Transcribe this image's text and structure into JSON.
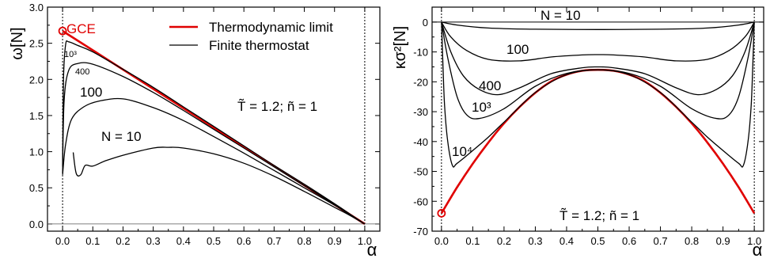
{
  "chart_data": [
    {
      "type": "line",
      "xlabel": "α",
      "ylabel": "ω[N]",
      "xlim": [
        -0.05,
        1.05
      ],
      "ylim": [
        -0.1,
        3.0
      ],
      "x_ticks": [
        "0.0",
        "0.1",
        "0.2",
        "0.3",
        "0.4",
        "0.5",
        "0.6",
        "0.7",
        "0.8",
        "0.9",
        "1.0"
      ],
      "y_ticks": [
        "0.0",
        "0.5",
        "1.0",
        "1.5",
        "2.0",
        "2.5",
        "3.0"
      ],
      "legend": {
        "placement": "top-right",
        "items": [
          "Thermodynamic limit",
          "Finite thermostat"
        ]
      },
      "annotations": {
        "gce": "GCE",
        "params": "T̃ = 1.2;  ñ = 1",
        "curve_labels": [
          "10³",
          "400",
          "100",
          "N = 10"
        ]
      },
      "vertical_lines": [
        0,
        1
      ],
      "series": [
        {
          "name": "Thermodynamic limit",
          "color": "#e00000",
          "points": [
            [
              0.0,
              2.67
            ],
            [
              1.0,
              0.0
            ]
          ]
        },
        {
          "label": "10³",
          "points": [
            [
              0.0,
              0.8
            ],
            [
              0.003,
              2.0
            ],
            [
              0.01,
              2.48
            ],
            [
              0.02,
              2.52
            ],
            [
              0.05,
              2.47
            ],
            [
              0.1,
              2.38
            ],
            [
              0.2,
              2.14
            ],
            [
              0.3,
              1.89
            ],
            [
              0.4,
              1.62
            ],
            [
              0.5,
              1.35
            ],
            [
              0.6,
              1.08
            ],
            [
              0.7,
              0.81
            ],
            [
              0.8,
              0.55
            ],
            [
              0.9,
              0.28
            ],
            [
              0.95,
              0.14
            ],
            [
              1.0,
              0.0
            ]
          ]
        },
        {
          "label": "400",
          "points": [
            [
              0.0,
              0.7
            ],
            [
              0.005,
              1.7
            ],
            [
              0.02,
              2.12
            ],
            [
              0.05,
              2.22
            ],
            [
              0.1,
              2.21
            ],
            [
              0.2,
              2.04
            ],
            [
              0.3,
              1.82
            ],
            [
              0.4,
              1.57
            ],
            [
              0.5,
              1.31
            ],
            [
              0.6,
              1.05
            ],
            [
              0.7,
              0.79
            ],
            [
              0.8,
              0.53
            ],
            [
              0.9,
              0.27
            ],
            [
              0.95,
              0.13
            ],
            [
              1.0,
              0.0
            ]
          ]
        },
        {
          "label": "100",
          "points": [
            [
              0.0,
              0.68
            ],
            [
              0.01,
              1.1
            ],
            [
              0.03,
              1.45
            ],
            [
              0.07,
              1.62
            ],
            [
              0.12,
              1.7
            ],
            [
              0.2,
              1.73
            ],
            [
              0.3,
              1.61
            ],
            [
              0.4,
              1.43
            ],
            [
              0.5,
              1.21
            ],
            [
              0.6,
              0.98
            ],
            [
              0.7,
              0.74
            ],
            [
              0.8,
              0.5
            ],
            [
              0.9,
              0.26
            ],
            [
              0.95,
              0.13
            ],
            [
              1.0,
              0.0
            ]
          ]
        },
        {
          "label": "N = 10",
          "points": [
            [
              0.035,
              0.99
            ],
            [
              0.045,
              0.7
            ],
            [
              0.06,
              0.68
            ],
            [
              0.075,
              0.81
            ],
            [
              0.1,
              0.8
            ],
            [
              0.14,
              0.87
            ],
            [
              0.2,
              0.95
            ],
            [
              0.3,
              1.05
            ],
            [
              0.35,
              1.06
            ],
            [
              0.4,
              1.05
            ],
            [
              0.5,
              0.97
            ],
            [
              0.6,
              0.84
            ],
            [
              0.7,
              0.66
            ],
            [
              0.8,
              0.45
            ],
            [
              0.9,
              0.23
            ],
            [
              0.95,
              0.12
            ],
            [
              1.0,
              0.0
            ]
          ]
        }
      ]
    },
    {
      "type": "line",
      "xlabel": "α",
      "ylabel": "κσ²[N]",
      "xlim": [
        -0.03,
        1.03
      ],
      "ylim": [
        -70,
        5
      ],
      "x_ticks": [
        "0.0",
        "0.1",
        "0.2",
        "0.3",
        "0.4",
        "0.5",
        "0.6",
        "0.7",
        "0.8",
        "0.9",
        "1.0"
      ],
      "y_ticks": [
        "0",
        "-10",
        "-20",
        "-30",
        "-40",
        "-50",
        "-60",
        "-70"
      ],
      "annotations": {
        "params": "T̃ = 1.2;  ñ = 1",
        "curve_labels": [
          "N = 10",
          "100",
          "400",
          "10³",
          "10⁴"
        ]
      },
      "vertical_lines": [
        0,
        1
      ],
      "series": [
        {
          "name": "Thermodynamic limit",
          "color": "#e00000",
          "points": [
            [
              0.0,
              -64.0
            ],
            [
              0.05,
              -55.3
            ],
            [
              0.1,
              -47.4
            ],
            [
              0.15,
              -40.3
            ],
            [
              0.2,
              -33.9
            ],
            [
              0.25,
              -28.4
            ],
            [
              0.3,
              -23.7
            ],
            [
              0.35,
              -19.9
            ],
            [
              0.4,
              -17.6
            ],
            [
              0.45,
              -16.3
            ],
            [
              0.5,
              -16.0
            ],
            [
              0.55,
              -16.3
            ],
            [
              0.6,
              -17.6
            ],
            [
              0.65,
              -19.9
            ],
            [
              0.7,
              -23.7
            ],
            [
              0.75,
              -28.4
            ],
            [
              0.8,
              -33.9
            ],
            [
              0.85,
              -40.3
            ],
            [
              0.9,
              -47.4
            ],
            [
              0.95,
              -55.3
            ],
            [
              1.0,
              -64.0
            ]
          ]
        },
        {
          "label": "10⁴",
          "points": [
            [
              0.0,
              0.0
            ],
            [
              0.005,
              -15.0
            ],
            [
              0.01,
              -28.0
            ],
            [
              0.02,
              -40.0
            ],
            [
              0.035,
              -48.0
            ],
            [
              0.05,
              -47.3
            ],
            [
              0.1,
              -43.0
            ],
            [
              0.15,
              -38.5
            ],
            [
              0.2,
              -33.5
            ],
            [
              0.3,
              -23.6
            ],
            [
              0.4,
              -17.6
            ],
            [
              0.5,
              -16.0
            ],
            [
              0.6,
              -17.6
            ],
            [
              0.7,
              -23.6
            ],
            [
              0.8,
              -33.5
            ],
            [
              0.85,
              -38.5
            ],
            [
              0.9,
              -43.0
            ],
            [
              0.95,
              -47.3
            ],
            [
              0.965,
              -48.0
            ],
            [
              0.98,
              -40.0
            ],
            [
              0.99,
              -28.0
            ],
            [
              0.995,
              -15.0
            ],
            [
              1.0,
              0.0
            ]
          ]
        },
        {
          "label": "10³",
          "points": [
            [
              0.0,
              0.0
            ],
            [
              0.02,
              -12.0
            ],
            [
              0.05,
              -25.0
            ],
            [
              0.08,
              -31.0
            ],
            [
              0.12,
              -32.3
            ],
            [
              0.2,
              -29.0
            ],
            [
              0.3,
              -21.5
            ],
            [
              0.4,
              -17.2
            ],
            [
              0.5,
              -16.0
            ],
            [
              0.6,
              -17.2
            ],
            [
              0.7,
              -21.5
            ],
            [
              0.8,
              -29.0
            ],
            [
              0.88,
              -32.3
            ],
            [
              0.92,
              -31.0
            ],
            [
              0.95,
              -25.0
            ],
            [
              0.98,
              -12.0
            ],
            [
              1.0,
              0.0
            ]
          ]
        },
        {
          "label": "400",
          "points": [
            [
              0.0,
              0.0
            ],
            [
              0.03,
              -10.0
            ],
            [
              0.07,
              -18.0
            ],
            [
              0.12,
              -22.5
            ],
            [
              0.18,
              -24.3
            ],
            [
              0.25,
              -22.0
            ],
            [
              0.35,
              -17.3
            ],
            [
              0.45,
              -15.3
            ],
            [
              0.5,
              -15.0
            ],
            [
              0.55,
              -15.3
            ],
            [
              0.65,
              -17.3
            ],
            [
              0.75,
              -22.0
            ],
            [
              0.82,
              -24.3
            ],
            [
              0.88,
              -22.5
            ],
            [
              0.93,
              -18.0
            ],
            [
              0.97,
              -10.0
            ],
            [
              1.0,
              0.0
            ]
          ]
        },
        {
          "label": "100",
          "points": [
            [
              0.0,
              0.0
            ],
            [
              0.03,
              -5.0
            ],
            [
              0.08,
              -9.5
            ],
            [
              0.15,
              -12.5
            ],
            [
              0.25,
              -13.0
            ],
            [
              0.35,
              -11.7
            ],
            [
              0.45,
              -11.0
            ],
            [
              0.5,
              -10.9
            ],
            [
              0.55,
              -11.0
            ],
            [
              0.65,
              -11.7
            ],
            [
              0.75,
              -13.0
            ],
            [
              0.85,
              -12.5
            ],
            [
              0.92,
              -9.5
            ],
            [
              0.97,
              -5.0
            ],
            [
              1.0,
              0.0
            ]
          ]
        },
        {
          "label": "N = 10",
          "points": [
            [
              0.0,
              0.0
            ],
            [
              0.05,
              -1.0
            ],
            [
              0.15,
              -2.0
            ],
            [
              0.3,
              -2.4
            ],
            [
              0.5,
              -2.5
            ],
            [
              0.7,
              -2.4
            ],
            [
              0.85,
              -2.0
            ],
            [
              0.95,
              -1.0
            ],
            [
              1.0,
              0.0
            ]
          ]
        },
        {
          "name": "horizontal reference",
          "points": [
            [
              -0.03,
              0.0
            ],
            [
              1.03,
              0.0
            ]
          ]
        }
      ]
    }
  ]
}
